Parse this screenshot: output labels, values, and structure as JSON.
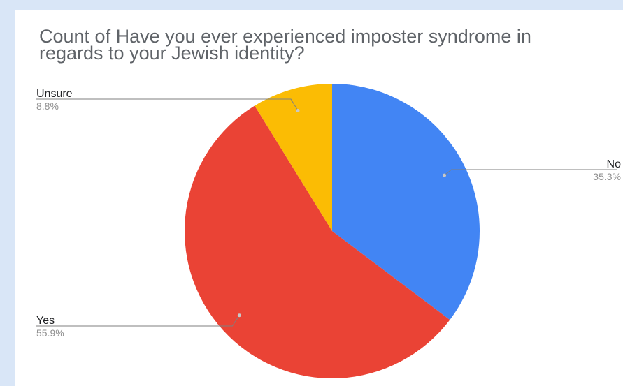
{
  "chart_data": {
    "type": "pie",
    "title": "Count of Have you ever experienced imposter syndrome in regards to your Jewish identity?",
    "slices": [
      {
        "label": "No",
        "percent": 35.3,
        "pct_label": "35.3%",
        "color": "#4285f4"
      },
      {
        "label": "Yes",
        "percent": 55.9,
        "pct_label": "55.9%",
        "color": "#ea4335"
      },
      {
        "label": "Unsure",
        "percent": 8.8,
        "pct_label": "8.8%",
        "color": "#fbbc04"
      }
    ],
    "legend": "none"
  }
}
